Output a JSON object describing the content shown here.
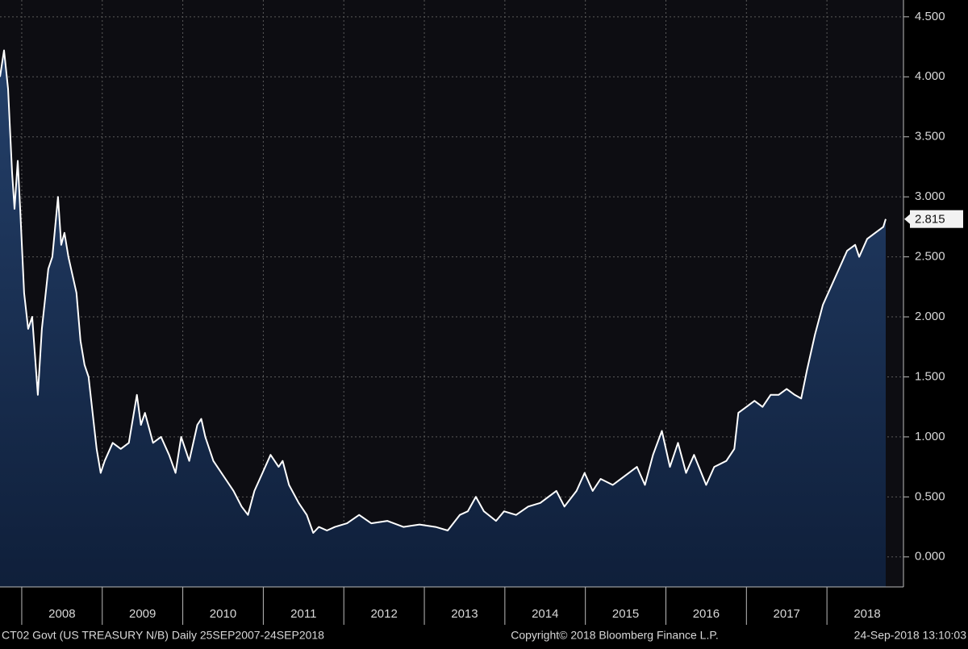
{
  "chart_data": {
    "type": "area",
    "x": [
      2007.73,
      2007.78,
      2007.83,
      2007.88,
      2007.91,
      2007.95,
      2007.98,
      2008.03,
      2008.08,
      2008.13,
      2008.2,
      2008.25,
      2008.33,
      2008.38,
      2008.45,
      2008.49,
      2008.53,
      2008.58,
      2008.68,
      2008.73,
      2008.78,
      2008.83,
      2008.88,
      2008.93,
      2008.98,
      2009.03,
      2009.13,
      2009.23,
      2009.33,
      2009.43,
      2009.48,
      2009.53,
      2009.63,
      2009.73,
      2009.83,
      2009.91,
      2009.98,
      2010.08,
      2010.18,
      2010.23,
      2010.28,
      2010.38,
      2010.53,
      2010.63,
      2010.73,
      2010.81,
      2010.89,
      2010.99,
      2011.09,
      2011.19,
      2011.24,
      2011.32,
      2011.44,
      2011.54,
      2011.62,
      2011.69,
      2011.79,
      2011.89,
      2012.04,
      2012.19,
      2012.34,
      2012.54,
      2012.74,
      2012.94,
      2013.14,
      2013.29,
      2013.44,
      2013.54,
      2013.64,
      2013.74,
      2013.89,
      2013.99,
      2014.14,
      2014.29,
      2014.44,
      2014.64,
      2014.74,
      2014.89,
      2014.99,
      2015.09,
      2015.19,
      2015.34,
      2015.54,
      2015.64,
      2015.74,
      2015.84,
      2015.95,
      2016.05,
      2016.15,
      2016.25,
      2016.35,
      2016.5,
      2016.6,
      2016.75,
      2016.85,
      2016.9,
      2017.0,
      2017.1,
      2017.2,
      2017.3,
      2017.4,
      2017.5,
      2017.6,
      2017.68,
      2017.75,
      2017.85,
      2017.95,
      2018.05,
      2018.15,
      2018.25,
      2018.35,
      2018.4,
      2018.5,
      2018.6,
      2018.7,
      2018.73
    ],
    "series": [
      {
        "name": "CT02 Govt",
        "color": "#ffffff",
        "fill": "#1a3258",
        "values": [
          4.0,
          4.22,
          3.9,
          3.2,
          2.9,
          3.3,
          2.9,
          2.2,
          1.9,
          2.0,
          1.35,
          1.9,
          2.4,
          2.5,
          3.0,
          2.6,
          2.7,
          2.5,
          2.2,
          1.8,
          1.6,
          1.5,
          1.2,
          0.9,
          0.7,
          0.8,
          0.95,
          0.9,
          0.95,
          1.35,
          1.1,
          1.2,
          0.95,
          1.0,
          0.85,
          0.7,
          1.0,
          0.8,
          1.1,
          1.15,
          1.0,
          0.8,
          0.65,
          0.55,
          0.42,
          0.35,
          0.55,
          0.7,
          0.85,
          0.75,
          0.8,
          0.6,
          0.45,
          0.35,
          0.2,
          0.25,
          0.22,
          0.25,
          0.28,
          0.35,
          0.28,
          0.3,
          0.25,
          0.27,
          0.25,
          0.22,
          0.35,
          0.38,
          0.5,
          0.38,
          0.3,
          0.38,
          0.35,
          0.42,
          0.45,
          0.55,
          0.42,
          0.55,
          0.7,
          0.55,
          0.65,
          0.6,
          0.7,
          0.75,
          0.6,
          0.85,
          1.05,
          0.75,
          0.95,
          0.7,
          0.85,
          0.6,
          0.75,
          0.8,
          0.9,
          1.2,
          1.25,
          1.3,
          1.25,
          1.35,
          1.35,
          1.4,
          1.35,
          1.32,
          1.55,
          1.85,
          2.1,
          2.25,
          2.4,
          2.55,
          2.6,
          2.5,
          2.65,
          2.7,
          2.75,
          2.815
        ]
      }
    ],
    "xlim": [
      2007.73,
      2018.73
    ],
    "xticks": [
      {
        "value": 2008,
        "label": "2008"
      },
      {
        "value": 2009,
        "label": "2009"
      },
      {
        "value": 2010,
        "label": "2010"
      },
      {
        "value": 2011,
        "label": "2011"
      },
      {
        "value": 2012,
        "label": "2012"
      },
      {
        "value": 2013,
        "label": "2013"
      },
      {
        "value": 2014,
        "label": "2014"
      },
      {
        "value": 2015,
        "label": "2015"
      },
      {
        "value": 2016,
        "label": "2016"
      },
      {
        "value": 2017,
        "label": "2017"
      },
      {
        "value": 2018,
        "label": "2018"
      }
    ],
    "ylim": [
      -0.25,
      4.64
    ],
    "yticks": [
      {
        "value": 0,
        "label": "0.000"
      },
      {
        "value": 0.5,
        "label": "0.500"
      },
      {
        "value": 1,
        "label": "1.000"
      },
      {
        "value": 1.5,
        "label": "1.500"
      },
      {
        "value": 2,
        "label": "2.000"
      },
      {
        "value": 2.5,
        "label": "2.500"
      },
      {
        "value": 3,
        "label": "3.000"
      },
      {
        "value": 3.5,
        "label": "3.500"
      },
      {
        "value": 4,
        "label": "4.000"
      },
      {
        "value": 4.5,
        "label": "4.500"
      }
    ],
    "grid": true,
    "footer": [
      "CT02 Govt (US TREASURY N/B)  Daily 25SEP2007-24SEP2018",
      "Copyright© 2018 Bloomberg Finance L.P.",
      "24-Sep-2018 13:10:03"
    ]
  }
}
